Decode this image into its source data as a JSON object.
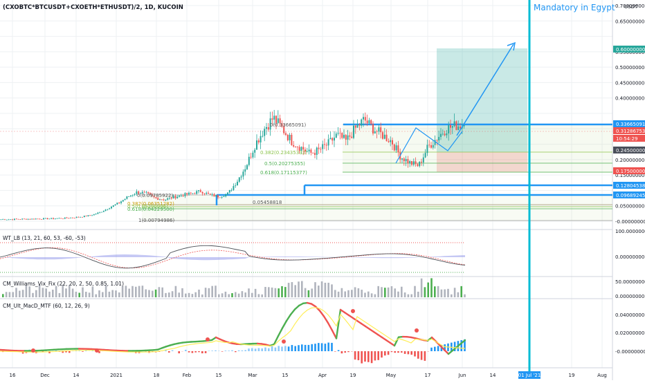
{
  "symbol": "(CXOBTC*BTCUSDT+CXOETH*ETHUSDT)/2, 1D, KUCOIN",
  "annotation": "Mandatory in Egypt",
  "currency": "USDT",
  "colors": {
    "up": "#26a69a",
    "down": "#ef5350",
    "accent_blue": "#2196f3",
    "cyan_line": "#00bcd4",
    "target": "#26a69a",
    "stop": "#ef5350",
    "fib_green": "#4caf50",
    "fib_olive": "#8bc34a"
  },
  "time_axis": {
    "labels": [
      "16",
      "Dec",
      "14",
      "2021",
      "18",
      "Feb",
      "15",
      "Mar",
      "15",
      "Apr",
      "19",
      "May",
      "17",
      "Jun",
      "14",
      "01 Jul '21",
      "19",
      "Aug"
    ]
  },
  "price_axis": {
    "labels": [
      "0.70000000",
      "0.65000000",
      "0.55000000",
      "0.50000000",
      "0.45000000",
      "0.40000000",
      "0.20000000",
      "0.15000000",
      "0.05000000",
      "-0.00000000"
    ],
    "badges": [
      {
        "label": "0.60000000",
        "color": "#26a69a"
      },
      {
        "label": "0.33665091",
        "color": "#2196f3"
      },
      {
        "label": "0.31286753",
        "color": "#ef5350"
      },
      {
        "label": "10:54:29",
        "color": "#ef5350"
      },
      {
        "label": "0.24500000",
        "color": "#4a4f5a"
      },
      {
        "label": "0.17500000",
        "color": "#ef5350"
      },
      {
        "label": "0.12804538",
        "color": "#2196f3"
      },
      {
        "label": "0.09689245",
        "color": "#2196f3"
      }
    ]
  },
  "fib_upper": [
    {
      "label": "0(0.33665091)"
    },
    {
      "label": "0.382(0.23435332)"
    },
    {
      "label": "0.5(0.20275355)"
    },
    {
      "label": "0.618(0.17115377)"
    }
  ],
  "fib_lower": [
    {
      "label": "0(0.09785922)"
    },
    {
      "label": "0.382(0.06351282)"
    },
    {
      "label": "0.5(0.05290996)"
    },
    {
      "label": "0.618(0.04229500)"
    },
    {
      "label": "0.05458818"
    },
    {
      "label": "1(0.00794986)"
    }
  ],
  "panes": {
    "wt": {
      "title": "WT_LB (13, 21, 60, 53, -60, -53)",
      "axis": [
        "100.00000000",
        "0.00000000"
      ]
    },
    "vix": {
      "title": "CM_Williams_Vix_Fix (22, 20, 2, 50, 0.85, 1.01)",
      "axis": [
        "50.00000000",
        "0.00000000"
      ]
    },
    "macd": {
      "title": "CM_Ult_MacD_MTF (60, 12, 26, 9)",
      "axis": [
        "0.04000000",
        "0.02000000",
        "-0.00000000"
      ]
    }
  },
  "chart_data": {
    "type": "candlestick",
    "title": "(CXOBTC*BTCUSDT+CXOETH*ETHUSDT)/2, 1D, KUCOIN",
    "ylabel": "USDT",
    "ylim": [
      -0.03,
      0.73
    ],
    "series": [
      {
        "name": "price",
        "values": [
          0.006,
          0.006,
          0.007,
          0.007,
          0.008,
          0.008,
          0.009,
          0.01,
          0.012,
          0.015,
          0.02,
          0.03,
          0.045,
          0.06,
          0.08,
          0.095,
          0.09,
          0.075,
          0.07,
          0.078,
          0.085,
          0.09,
          0.098,
          0.085,
          0.08,
          0.09,
          0.13,
          0.18,
          0.25,
          0.3,
          0.336,
          0.3,
          0.26,
          0.24,
          0.22,
          0.23,
          0.25,
          0.28,
          0.26,
          0.3,
          0.33,
          0.3,
          0.28,
          0.26,
          0.21,
          0.19,
          0.18,
          0.24,
          0.27,
          0.3,
          0.31,
          0.313
        ]
      }
    ],
    "levels": [
      0.33665091,
      0.31286753,
      0.245,
      0.175,
      0.12804538,
      0.09689245,
      0.6
    ],
    "annotations": [
      "Mandatory in Egypt"
    ]
  }
}
